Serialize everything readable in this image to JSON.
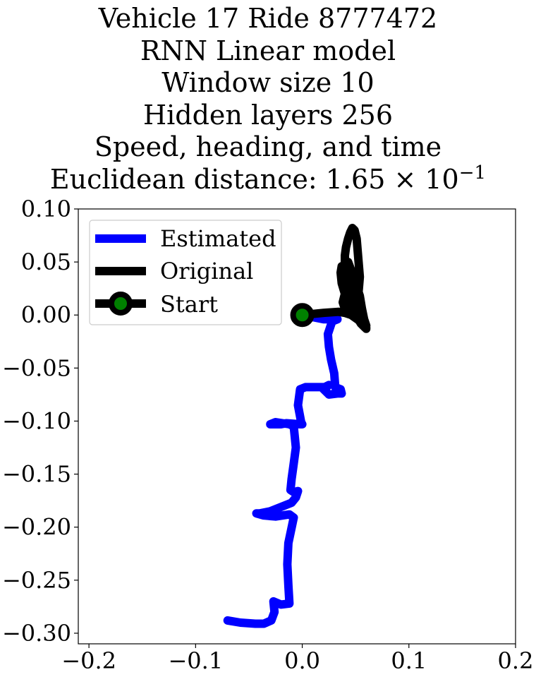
{
  "chart_data": {
    "type": "line",
    "title_lines": [
      "Vehicle 17 Ride 8777472",
      "RNN Linear model",
      "Window size 10",
      "Hidden layers 256",
      "Speed, heading, and time"
    ],
    "title_last_prefix": "Euclidean distance: 1.65 × 10",
    "title_last_exponent": "−1",
    "xlim": [
      -0.21,
      0.2
    ],
    "ylim": [
      -0.31,
      0.1
    ],
    "x_ticks": [
      -0.2,
      -0.1,
      0.0,
      0.1,
      0.2
    ],
    "x_tick_labels": [
      "−0.2",
      "−0.1",
      "0.0",
      "0.1",
      "0.2"
    ],
    "y_ticks": [
      0.1,
      0.05,
      0.0,
      -0.05,
      -0.1,
      -0.15,
      -0.2,
      -0.25,
      -0.3
    ],
    "y_tick_labels": [
      "0.10",
      "0.05",
      "0.00",
      "−0.05",
      "−0.10",
      "−0.15",
      "−0.20",
      "−0.25",
      "−0.30"
    ],
    "legend_position": "upper-left",
    "grid": false,
    "series": [
      {
        "name": "Estimated",
        "color": "#0000ff",
        "x": [
          0.0,
          0.02,
          0.033,
          0.028,
          0.024,
          0.025,
          0.027,
          0.03,
          0.031,
          0.036,
          0.037,
          0.033,
          0.025,
          0.02,
          0.025,
          0.021,
          0.003,
          -0.002,
          -0.004,
          -0.001,
          0.0,
          -0.002,
          -0.015,
          -0.02,
          -0.03,
          -0.025,
          -0.012,
          -0.008,
          -0.006,
          -0.008,
          -0.01,
          -0.011,
          -0.008,
          -0.004,
          -0.006,
          -0.01,
          -0.03,
          -0.04,
          -0.043,
          -0.036,
          -0.025,
          -0.012,
          -0.008,
          -0.013,
          -0.014,
          -0.013,
          -0.012,
          -0.02,
          -0.027,
          -0.026,
          -0.029,
          -0.036,
          -0.044,
          -0.058,
          -0.07
        ],
        "y": [
          0.0,
          -0.004,
          -0.004,
          -0.006,
          -0.018,
          -0.03,
          -0.042,
          -0.055,
          -0.068,
          -0.07,
          -0.074,
          -0.074,
          -0.075,
          -0.07,
          -0.066,
          -0.068,
          -0.068,
          -0.07,
          -0.085,
          -0.101,
          -0.103,
          -0.103,
          -0.102,
          -0.103,
          -0.103,
          -0.101,
          -0.103,
          -0.105,
          -0.125,
          -0.14,
          -0.155,
          -0.165,
          -0.167,
          -0.166,
          -0.172,
          -0.177,
          -0.185,
          -0.187,
          -0.187,
          -0.189,
          -0.19,
          -0.188,
          -0.191,
          -0.215,
          -0.235,
          -0.255,
          -0.272,
          -0.273,
          -0.27,
          -0.28,
          -0.288,
          -0.291,
          -0.291,
          -0.29,
          -0.288
        ]
      },
      {
        "name": "Original",
        "color": "#000000",
        "x": [
          0.0,
          0.02,
          0.034,
          0.04,
          0.046,
          0.053,
          0.057,
          0.06,
          0.059,
          0.056,
          0.052,
          0.049,
          0.046,
          0.044,
          0.042,
          0.041,
          0.04,
          0.04,
          0.041,
          0.043,
          0.045,
          0.047,
          0.049,
          0.051,
          0.052,
          0.053,
          0.054,
          0.053,
          0.052,
          0.05,
          0.047,
          0.044,
          0.042,
          0.04,
          0.04,
          0.041,
          0.043,
          0.046,
          0.05,
          0.054,
          0.056,
          0.058,
          0.06,
          0.059,
          0.055,
          0.05,
          0.045,
          0.04,
          0.037,
          0.036,
          0.037,
          0.04,
          0.044,
          0.048,
          0.053,
          0.057,
          0.06,
          0.055,
          0.047,
          0.04,
          0.038,
          0.04
        ],
        "y": [
          0.0,
          0.002,
          0.003,
          0.002,
          0.0,
          -0.005,
          -0.01,
          -0.013,
          -0.012,
          -0.007,
          0.0,
          0.008,
          0.016,
          0.024,
          0.032,
          0.04,
          0.048,
          0.056,
          0.064,
          0.072,
          0.078,
          0.082,
          0.08,
          0.072,
          0.06,
          0.048,
          0.036,
          0.024,
          0.014,
          0.006,
          0.0,
          0.006,
          0.016,
          0.026,
          0.036,
          0.044,
          0.05,
          0.042,
          0.03,
          0.018,
          0.006,
          -0.004,
          -0.01,
          -0.012,
          -0.008,
          0.0,
          0.01,
          0.02,
          0.03,
          0.04,
          0.046,
          0.04,
          0.028,
          0.014,
          0.002,
          -0.006,
          -0.012,
          -0.006,
          0.002,
          0.006,
          0.012,
          0.02
        ]
      }
    ],
    "start_label": "Start",
    "start_point": {
      "x": 0.0,
      "y": 0.0,
      "face_color": "#008000",
      "edge_color": "#000000"
    }
  }
}
